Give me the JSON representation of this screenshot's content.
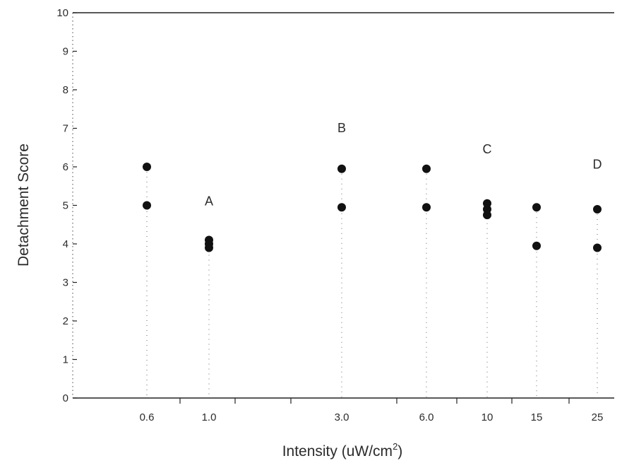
{
  "chart_data": {
    "type": "scatter",
    "title": "",
    "xlabel": "Intensity (uW/cm",
    "xlabel_sup": "2",
    "xlabel_end": ")",
    "ylabel": "Detachment Score",
    "ylim": [
      0,
      10
    ],
    "yticks": [
      "0",
      "1",
      "2",
      "3",
      "4",
      "5",
      "6",
      "7",
      "8",
      "9",
      "10"
    ],
    "categories": [
      "0.6",
      "1.0",
      "3.0",
      "6.0",
      "10",
      "15",
      "25"
    ],
    "points": [
      {
        "x": "0.6",
        "y": 6
      },
      {
        "x": "0.6",
        "y": 5
      },
      {
        "x": "1.0",
        "y": 4.1
      },
      {
        "x": "1.0",
        "y": 4.0
      },
      {
        "x": "1.0",
        "y": 3.9
      },
      {
        "x": "3.0",
        "y": 5.95
      },
      {
        "x": "3.0",
        "y": 4.95
      },
      {
        "x": "6.0",
        "y": 5.95
      },
      {
        "x": "6.0",
        "y": 4.95
      },
      {
        "x": "10",
        "y": 5.05
      },
      {
        "x": "10",
        "y": 4.9
      },
      {
        "x": "10",
        "y": 4.75
      },
      {
        "x": "15",
        "y": 4.95
      },
      {
        "x": "15",
        "y": 3.95
      },
      {
        "x": "25",
        "y": 4.9
      },
      {
        "x": "25",
        "y": 3.9
      }
    ],
    "annotations": [
      {
        "text": "A",
        "x": "1.0",
        "y": 5.0
      },
      {
        "text": "B",
        "x": "3.0",
        "y": 6.9
      },
      {
        "text": "C",
        "x": "10",
        "y": 6.35
      },
      {
        "text": "D",
        "x": "25",
        "y": 5.95
      }
    ],
    "grid": false,
    "legend": "none"
  }
}
